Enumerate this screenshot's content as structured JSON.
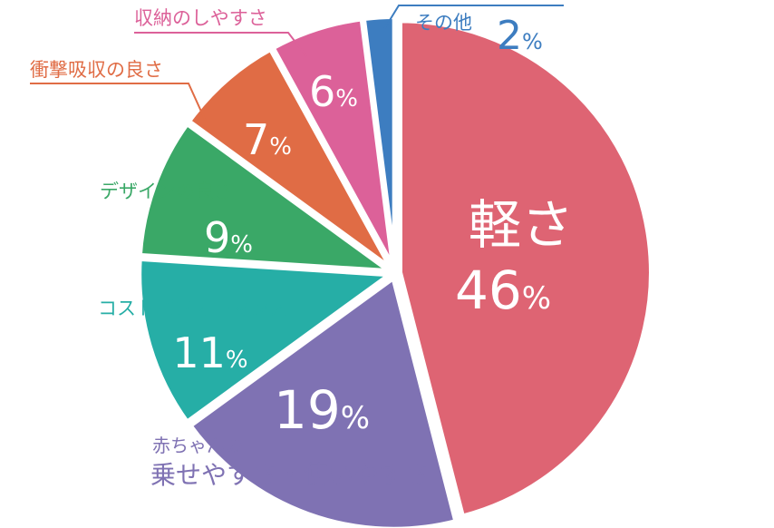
{
  "chart_data": {
    "type": "pie",
    "slices": [
      {
        "label": "軽さ",
        "value": 46,
        "color": "#de6473"
      },
      {
        "label_line1": "赤ちゃんの",
        "label_line2": "乗せやすさ・使いやすさ",
        "value": 19,
        "color": "#7f72b3"
      },
      {
        "label": "コストパフォーマンス",
        "value": 11,
        "color": "#26aea6"
      },
      {
        "label": "デザインの良さ",
        "value": 9,
        "color": "#3aa867"
      },
      {
        "label": "衝撃吸収の良さ",
        "value": 7,
        "color": "#e06c45"
      },
      {
        "label": "収納のしやすさ",
        "value": 6,
        "color": "#dc6199"
      },
      {
        "label": "その他",
        "value": 2,
        "color": "#3d7dc0"
      }
    ],
    "percent_sign": "%"
  }
}
